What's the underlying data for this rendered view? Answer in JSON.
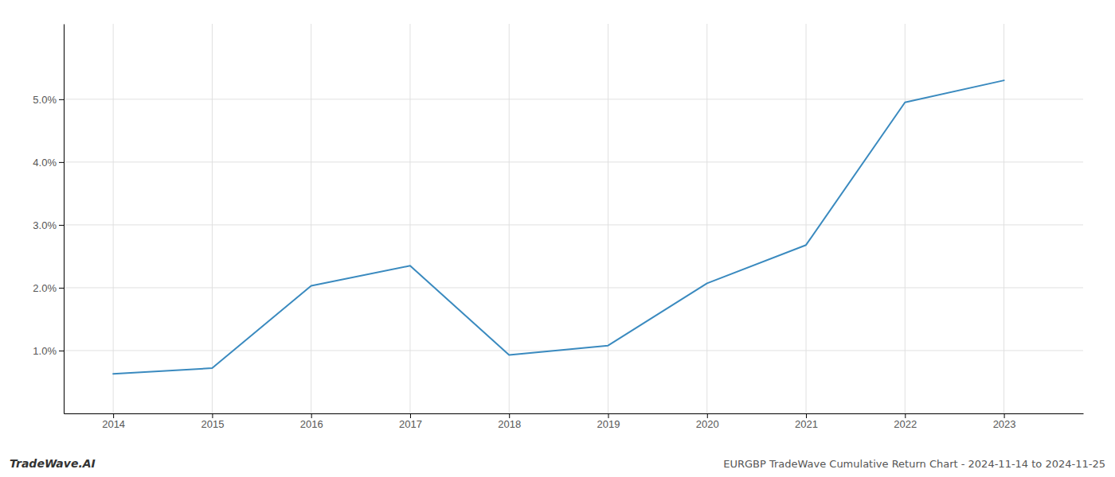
{
  "chart_data": {
    "type": "line",
    "title": "EURGBP TradeWave Cumulative Return Chart - 2024-11-14 to 2024-11-25",
    "annotations": [
      "TradeWave.AI"
    ],
    "x": [
      2014,
      2015,
      2016,
      2017,
      2018,
      2019,
      2020,
      2021,
      2022,
      2023
    ],
    "values": [
      0.0063,
      0.0072,
      0.0203,
      0.0235,
      0.0093,
      0.0108,
      0.0207,
      0.0268,
      0.0495,
      0.053
    ],
    "color": "#3a8abf",
    "xlim": [
      2013.5,
      2023.8
    ],
    "xticks": [
      2014,
      2015,
      2016,
      2017,
      2018,
      2019,
      2020,
      2021,
      2022,
      2023
    ],
    "ylim": [
      0.0,
      0.062
    ],
    "yticks": [
      {
        "value": 0.01,
        "label": "1.0%"
      },
      {
        "value": 0.02,
        "label": "2.0%"
      },
      {
        "value": 0.03,
        "label": "3.0%"
      },
      {
        "value": 0.04,
        "label": "4.0%"
      },
      {
        "value": 0.05,
        "label": "5.0%"
      }
    ],
    "grid": true
  }
}
